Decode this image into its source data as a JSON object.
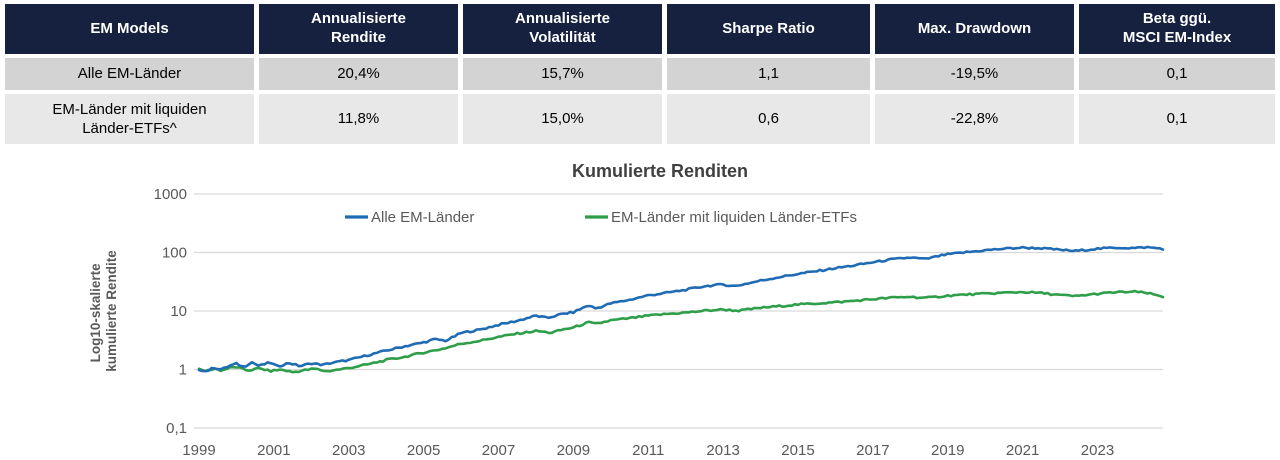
{
  "table": {
    "headers": [
      "EM Models",
      "Annualisierte\nRendite",
      "Annualisierte\nVolatilität",
      "Sharpe Ratio",
      "Max. Drawdown",
      "Beta ggü.\nMSCI EM-Index"
    ],
    "rows": [
      {
        "cells": [
          "Alle EM-Länder",
          "20,4%",
          "15,7%",
          "1,1",
          "-19,5%",
          "0,1"
        ]
      },
      {
        "cells": [
          "EM-Länder mit liquiden\nLänder-ETFs^",
          "11,8%",
          "15,0%",
          "0,6",
          "-22,8%",
          "0,1"
        ]
      }
    ],
    "header_bg": "#15213e",
    "row_bg": [
      "#d3d3d3",
      "#e8e8e8"
    ]
  },
  "chart_data": {
    "type": "line",
    "title": "Kumulierte Renditen",
    "ylabel_lines": [
      "Log10-skalierte",
      "kumulierte Rendite"
    ],
    "y_scale": "log10",
    "grid": true,
    "legend_position": "top",
    "x_range": [
      1999,
      2024.75
    ],
    "y_range": [
      0.1,
      1000
    ],
    "y_ticks": [
      {
        "label": "1000",
        "value": 1000
      },
      {
        "label": "100",
        "value": 100
      },
      {
        "label": "10",
        "value": 10
      },
      {
        "label": "1",
        "value": 1
      },
      {
        "label": "0,1",
        "value": 0.1
      }
    ],
    "x_ticks": [
      {
        "label": "1999",
        "value": 1999
      },
      {
        "label": "2001",
        "value": 2001
      },
      {
        "label": "2003",
        "value": 2003
      },
      {
        "label": "2005",
        "value": 2005
      },
      {
        "label": "2007",
        "value": 2007
      },
      {
        "label": "2009",
        "value": 2009
      },
      {
        "label": "2011",
        "value": 2011
      },
      {
        "label": "2013",
        "value": 2013
      },
      {
        "label": "2015",
        "value": 2015
      },
      {
        "label": "2017",
        "value": 2017
      },
      {
        "label": "2019",
        "value": 2019
      },
      {
        "label": "2021",
        "value": 2021
      },
      {
        "label": "2023",
        "value": 2023
      }
    ],
    "colors": {
      "grid": "#d9d9d9",
      "text": "#595959",
      "title": "#404040"
    },
    "series": [
      {
        "name": "Alle EM-Länder",
        "color": "#1f6cb4",
        "points": [
          [
            1999.0,
            1.0
          ],
          [
            1999.2,
            0.93
          ],
          [
            1999.4,
            1.08
          ],
          [
            1999.6,
            1.0
          ],
          [
            1999.8,
            1.15
          ],
          [
            2000.0,
            1.25
          ],
          [
            2000.2,
            1.1
          ],
          [
            2000.4,
            1.35
          ],
          [
            2000.6,
            1.15
          ],
          [
            2000.9,
            1.32
          ],
          [
            2001.1,
            1.12
          ],
          [
            2001.4,
            1.3
          ],
          [
            2001.7,
            1.14
          ],
          [
            2002.0,
            1.28
          ],
          [
            2002.3,
            1.2
          ],
          [
            2002.6,
            1.32
          ],
          [
            2003.0,
            1.45
          ],
          [
            2003.5,
            1.75
          ],
          [
            2004.0,
            2.1
          ],
          [
            2004.5,
            2.5
          ],
          [
            2005.0,
            2.9
          ],
          [
            2005.3,
            3.3
          ],
          [
            2005.6,
            3.1
          ],
          [
            2006.0,
            4.2
          ],
          [
            2006.5,
            4.8
          ],
          [
            2007.0,
            5.8
          ],
          [
            2007.5,
            6.8
          ],
          [
            2008.0,
            8.3
          ],
          [
            2008.3,
            7.6
          ],
          [
            2008.7,
            8.9
          ],
          [
            2009.0,
            9.5
          ],
          [
            2009.4,
            12.5
          ],
          [
            2009.6,
            11.0
          ],
          [
            2010.0,
            13.5
          ],
          [
            2010.5,
            15.5
          ],
          [
            2011.0,
            18.5
          ],
          [
            2011.5,
            20.5
          ],
          [
            2012.0,
            23.0
          ],
          [
            2012.5,
            26.5
          ],
          [
            2013.0,
            28.5
          ],
          [
            2013.3,
            26.5
          ],
          [
            2013.7,
            30.0
          ],
          [
            2014.0,
            33.0
          ],
          [
            2014.5,
            38.0
          ],
          [
            2015.0,
            43.0
          ],
          [
            2015.5,
            48.0
          ],
          [
            2016.0,
            54.0
          ],
          [
            2016.5,
            60.0
          ],
          [
            2017.0,
            68.0
          ],
          [
            2017.5,
            76.0
          ],
          [
            2018.0,
            82.0
          ],
          [
            2018.4,
            77.0
          ],
          [
            2018.8,
            88.0
          ],
          [
            2019.0,
            93.0
          ],
          [
            2019.5,
            101.0
          ],
          [
            2020.0,
            109.0
          ],
          [
            2020.5,
            116.0
          ],
          [
            2021.0,
            121.0
          ],
          [
            2021.5,
            118.0
          ],
          [
            2022.0,
            111.0
          ],
          [
            2022.4,
            106.0
          ],
          [
            2022.8,
            113.0
          ],
          [
            2023.0,
            116.0
          ],
          [
            2023.5,
            121.0
          ],
          [
            2024.0,
            119.0
          ],
          [
            2024.3,
            123.0
          ],
          [
            2024.75,
            116.0
          ]
        ]
      },
      {
        "name": "EM-Länder mit liquiden Länder-ETFs",
        "color": "#2f9e49",
        "points": [
          [
            1999.0,
            1.0
          ],
          [
            1999.2,
            0.94
          ],
          [
            1999.4,
            1.04
          ],
          [
            1999.6,
            0.96
          ],
          [
            1999.8,
            1.06
          ],
          [
            2000.0,
            1.1
          ],
          [
            2000.3,
            0.96
          ],
          [
            2000.6,
            1.05
          ],
          [
            2000.9,
            0.94
          ],
          [
            2001.2,
            1.0
          ],
          [
            2001.5,
            0.9
          ],
          [
            2001.8,
            0.97
          ],
          [
            2002.1,
            1.03
          ],
          [
            2002.4,
            0.93
          ],
          [
            2002.7,
            0.99
          ],
          [
            2003.0,
            1.06
          ],
          [
            2003.5,
            1.22
          ],
          [
            2004.0,
            1.45
          ],
          [
            2004.5,
            1.65
          ],
          [
            2005.0,
            1.95
          ],
          [
            2005.5,
            2.25
          ],
          [
            2006.0,
            2.75
          ],
          [
            2006.5,
            3.1
          ],
          [
            2007.0,
            3.6
          ],
          [
            2007.5,
            4.1
          ],
          [
            2008.0,
            4.55
          ],
          [
            2008.4,
            4.25
          ],
          [
            2008.8,
            4.95
          ],
          [
            2009.0,
            5.2
          ],
          [
            2009.4,
            6.4
          ],
          [
            2009.6,
            6.0
          ],
          [
            2010.0,
            6.9
          ],
          [
            2010.5,
            7.5
          ],
          [
            2011.0,
            8.3
          ],
          [
            2011.5,
            8.9
          ],
          [
            2012.0,
            9.4
          ],
          [
            2012.5,
            10.1
          ],
          [
            2013.0,
            10.6
          ],
          [
            2013.4,
            10.1
          ],
          [
            2013.8,
            10.9
          ],
          [
            2014.0,
            11.3
          ],
          [
            2014.5,
            12.1
          ],
          [
            2015.0,
            12.9
          ],
          [
            2015.5,
            13.5
          ],
          [
            2016.0,
            14.1
          ],
          [
            2016.5,
            14.9
          ],
          [
            2017.0,
            15.9
          ],
          [
            2017.5,
            16.9
          ],
          [
            2018.0,
            17.5
          ],
          [
            2018.4,
            16.7
          ],
          [
            2018.8,
            17.7
          ],
          [
            2019.0,
            18.3
          ],
          [
            2019.5,
            19.1
          ],
          [
            2020.0,
            19.7
          ],
          [
            2020.5,
            20.5
          ],
          [
            2021.0,
            21.1
          ],
          [
            2021.5,
            20.3
          ],
          [
            2022.0,
            18.7
          ],
          [
            2022.4,
            17.9
          ],
          [
            2022.8,
            19.1
          ],
          [
            2023.0,
            19.7
          ],
          [
            2023.5,
            20.9
          ],
          [
            2024.0,
            21.3
          ],
          [
            2024.3,
            20.4
          ],
          [
            2024.75,
            17.6
          ]
        ]
      }
    ]
  }
}
